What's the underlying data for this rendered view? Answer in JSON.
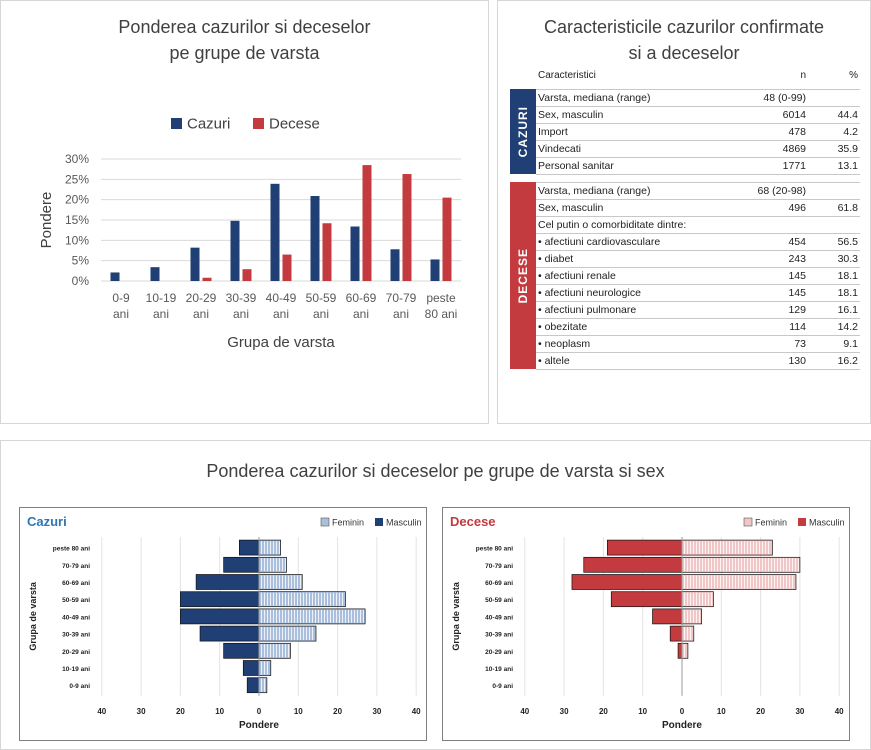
{
  "colors": {
    "cazuri": "#1f3f75",
    "decese": "#c33b3e",
    "feminin_cazuri": "#a9bfdc",
    "feminin_decese": "#f1c6c6",
    "grid": "#d9d9d9"
  },
  "chart_data": [
    {
      "type": "bar",
      "title": "Ponderea cazurilor si deceselor pe grupe de varsta",
      "xlabel": "Grupa de varsta",
      "ylabel": "Pondere",
      "categories": [
        "0-9 ani",
        "10-19 ani",
        "20-29 ani",
        "30-39 ani",
        "40-49 ani",
        "50-59 ani",
        "60-69 ani",
        "70-79 ani",
        "peste 80 ani"
      ],
      "category_lines": [
        [
          "0-9",
          "ani"
        ],
        [
          "10-19",
          "ani"
        ],
        [
          "20-29",
          "ani"
        ],
        [
          "30-39",
          "ani"
        ],
        [
          "40-49",
          "ani"
        ],
        [
          "50-59",
          "ani"
        ],
        [
          "60-69",
          "ani"
        ],
        [
          "70-79",
          "ani"
        ],
        [
          "peste",
          "80 ani"
        ]
      ],
      "series": [
        {
          "name": "Cazuri",
          "color": "#1f3f75",
          "values": [
            2.1,
            3.4,
            8.2,
            14.8,
            23.9,
            20.9,
            13.4,
            7.8,
            5.3
          ]
        },
        {
          "name": "Decese",
          "color": "#c33b3e",
          "values": [
            0,
            0,
            0.8,
            2.9,
            6.5,
            14.2,
            28.5,
            26.3,
            20.5
          ]
        }
      ],
      "ylim": [
        0,
        30
      ],
      "yticks": [
        "0%",
        "5%",
        "10%",
        "15%",
        "20%",
        "25%",
        "30%"
      ],
      "legend": "top-center",
      "grid": true
    },
    {
      "type": "bar",
      "orientation": "horizontal-pyramid",
      "title": "Cazuri",
      "xlabel": "Pondere",
      "ylabel": "Grupa de varsta",
      "categories": [
        "0-9 ani",
        "10-19 ani",
        "20-29 ani",
        "30-39 ani",
        "40-49 ani",
        "50-59 ani",
        "60-69 ani",
        "70-79 ani",
        "peste 80 ani"
      ],
      "series": [
        {
          "name": "Feminin",
          "side": "right",
          "values": [
            2,
            3,
            8,
            14.5,
            27,
            22,
            11,
            7,
            5.5
          ]
        },
        {
          "name": "Masculin",
          "side": "left",
          "values": [
            3,
            4,
            9,
            15,
            20,
            20,
            16,
            9,
            5
          ]
        }
      ],
      "xlim": [
        -40,
        40
      ],
      "xticks": [
        "40",
        "30",
        "20",
        "10",
        "0",
        "10",
        "20",
        "30",
        "40"
      ],
      "legend": "top-right"
    },
    {
      "type": "bar",
      "orientation": "horizontal-pyramid",
      "title": "Decese",
      "xlabel": "Pondere",
      "ylabel": "Grupa de varsta",
      "categories": [
        "0-9 ani",
        "10-19 ani",
        "20-29 ani",
        "30-39 ani",
        "40-49 ani",
        "50-59 ani",
        "60-69 ani",
        "70-79 ani",
        "peste 80 ani"
      ],
      "series": [
        {
          "name": "Feminin",
          "side": "right",
          "values": [
            0,
            0,
            1.5,
            3,
            5,
            8,
            29,
            30,
            23
          ]
        },
        {
          "name": "Masculin",
          "side": "left",
          "values": [
            0,
            0,
            1,
            3,
            7.5,
            18,
            28,
            25,
            19
          ]
        }
      ],
      "xlim": [
        -40,
        40
      ],
      "xticks": [
        "40",
        "30",
        "20",
        "10",
        "0",
        "10",
        "20",
        "30",
        "40"
      ],
      "legend": "top-right"
    }
  ],
  "panels": {
    "bar_title_line1": "Ponderea cazurilor si deceselor",
    "bar_title_line2": "pe grupe de varsta",
    "table_title_line1": "Caracteristicile cazurilor confirmate",
    "table_title_line2": "si a deceselor",
    "bottom_title": "Ponderea cazurilor si deceselor pe grupe de varsta si sex"
  },
  "table": {
    "header": {
      "caracteristici": "Caracteristici",
      "n": "n",
      "pct": "%"
    },
    "cazuri_label": "CAZURI",
    "decese_label": "DECESE",
    "cazuri": [
      {
        "label": "Varsta, mediana (range)",
        "n": "48 (0-99)",
        "pct": ""
      },
      {
        "label": "Sex, masculin",
        "n": "6014",
        "pct": "44.4"
      },
      {
        "label": "Import",
        "n": "478",
        "pct": "4.2"
      },
      {
        "label": "Vindecati",
        "n": "4869",
        "pct": "35.9"
      },
      {
        "label": "Personal sanitar",
        "n": "1771",
        "pct": "13.1"
      }
    ],
    "decese": [
      {
        "label": "Varsta, mediana (range)",
        "n": "68 (20-98)",
        "pct": ""
      },
      {
        "label": "Sex, masculin",
        "n": "496",
        "pct": "61.8"
      },
      {
        "label": "Cel putin o comorbiditate dintre:",
        "n": "",
        "pct": ""
      },
      {
        "label": "afectiuni cardiovasculare",
        "n": "454",
        "pct": "56.5",
        "bullet": true
      },
      {
        "label": "diabet",
        "n": "243",
        "pct": "30.3",
        "bullet": true
      },
      {
        "label": "afectiuni renale",
        "n": "145",
        "pct": "18.1",
        "bullet": true
      },
      {
        "label": "afectiuni neurologice",
        "n": "145",
        "pct": "18.1",
        "bullet": true
      },
      {
        "label": "afectiuni pulmonare",
        "n": "129",
        "pct": "16.1",
        "bullet": true
      },
      {
        "label": "obezitate",
        "n": "114",
        "pct": "14.2",
        "bullet": true
      },
      {
        "label": "neoplasm",
        "n": "73",
        "pct": "9.1",
        "bullet": true
      },
      {
        "label": "altele",
        "n": "130",
        "pct": "16.2",
        "bullet": true
      }
    ]
  }
}
